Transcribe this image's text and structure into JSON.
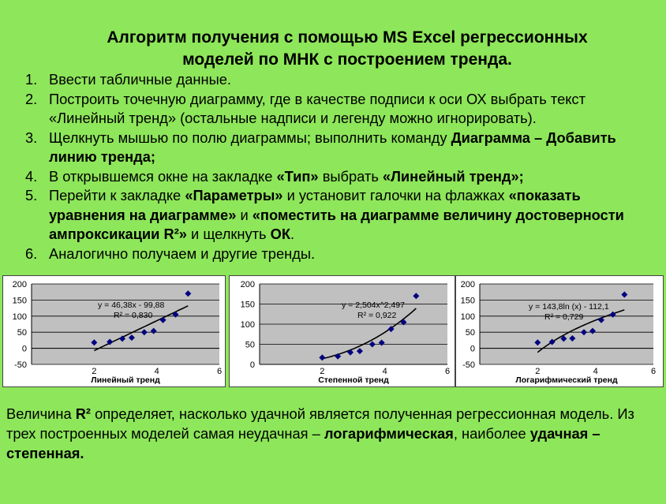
{
  "title_line1": "Алгоритм получения с помощью MS Excel регрессионных",
  "title_line2": "моделей по МНК с построением тренда.",
  "steps": [
    {
      "num": "1.",
      "parts": [
        {
          "t": "Ввести табличные данные.",
          "b": false
        }
      ]
    },
    {
      "num": "2.",
      "parts": [
        {
          "t": "Построить точечную диаграмму, где в качестве подписи к оси ОХ выбрать текст «Линейный тренд» (остальные надписи и легенду можно игнорировать).",
          "b": false
        }
      ]
    },
    {
      "num": "3.",
      "parts": [
        {
          "t": "Щелкнуть  мышью по полю диаграммы; выполнить команду ",
          "b": false
        },
        {
          "t": "Диаграмма – Добавить линию тренда;",
          "b": true
        }
      ]
    },
    {
      "num": "4.",
      "parts": [
        {
          "t": "В открывшемся окне на закладке ",
          "b": false
        },
        {
          "t": "«Тип»",
          "b": true
        },
        {
          "t": " выбрать ",
          "b": false
        },
        {
          "t": "«Линейный тренд»;",
          "b": true
        }
      ]
    },
    {
      "num": "5.",
      "parts": [
        {
          "t": "Перейти к закладке ",
          "b": false
        },
        {
          "t": "«Параметры»",
          "b": true
        },
        {
          "t": " и установит галочки на флажках ",
          "b": false
        },
        {
          "t": "«показать уравнения на диаграмме»",
          "b": true
        },
        {
          "t": " и ",
          "b": false
        },
        {
          "t": "«поместить на диаграмме величину достоверности ампроксикации R²»",
          "b": true
        },
        {
          "t": " и щелкнуть ",
          "b": false
        },
        {
          "t": "ОК",
          "b": true
        },
        {
          "t": ".",
          "b": false
        }
      ]
    },
    {
      "num": "6.",
      "parts": [
        {
          "t": "Аналогично получаем и другие тренды.",
          "b": false
        }
      ]
    }
  ],
  "chart_data": [
    {
      "type": "scatter",
      "xlabel": "Линейный тренд",
      "xlim": [
        0,
        6
      ],
      "ylim": [
        -50,
        200
      ],
      "xticks": [
        "2",
        "4",
        "6"
      ],
      "yticks": [
        "200",
        "150",
        "100",
        "50",
        "0",
        "-50"
      ],
      "equation": "y = 46,38x - 99,88",
      "r2": "R² = 0,830",
      "x": [
        2,
        2.5,
        2.9,
        3.2,
        3.6,
        3.9,
        4.2,
        4.6,
        5
      ],
      "y": [
        18,
        20,
        30,
        33,
        50,
        54,
        88,
        105,
        170
      ],
      "trend": "linear",
      "coef": [
        46.38,
        -99.88
      ]
    },
    {
      "type": "scatter",
      "xlabel": "Степенной тренд",
      "xlim": [
        0,
        6
      ],
      "ylim": [
        0,
        200
      ],
      "xticks": [
        "2",
        "4",
        "6"
      ],
      "yticks": [
        "200",
        "150",
        "100",
        "50",
        "0"
      ],
      "equation": "y = 2,504x^2,497",
      "r2": "R² = 0,922",
      "x": [
        2,
        2.5,
        2.9,
        3.2,
        3.6,
        3.9,
        4.2,
        4.6,
        5
      ],
      "y": [
        17,
        20,
        30,
        33,
        50,
        54,
        88,
        105,
        170
      ],
      "trend": "power",
      "coef": [
        2.504,
        2.497
      ]
    },
    {
      "type": "scatter",
      "xlabel": "Логарифмический тренд",
      "xlim": [
        0,
        6
      ],
      "ylim": [
        -50,
        200
      ],
      "xticks": [
        "2",
        "4",
        "6"
      ],
      "yticks": [
        "200",
        "150",
        "100",
        "50",
        "0",
        "-50"
      ],
      "equation": "y = 143,8ln (x) - 112,1",
      "r2": "R² = 0,729",
      "x": [
        2,
        2.5,
        2.9,
        3.2,
        3.6,
        3.9,
        4.2,
        4.6,
        5
      ],
      "y": [
        18,
        20,
        30,
        31,
        50,
        54,
        88,
        105,
        167
      ],
      "trend": "log",
      "coef": [
        143.8,
        -112.1
      ]
    }
  ],
  "footer": [
    {
      "t": "Величина ",
      "b": false
    },
    {
      "t": "R²",
      "b": true
    },
    {
      "t": " определяет, насколько удачной является полученная регрессионная модель. Из трех построенных моделей самая неудачная – ",
      "b": false
    },
    {
      "t": "логарифмическая",
      "b": true
    },
    {
      "t": ", наиболее ",
      "b": false
    },
    {
      "t": "удачная – степенная.",
      "b": true
    }
  ],
  "colors": {
    "background": "#8ee65a",
    "plot_area": "#c0c0c0",
    "marker": "#000080",
    "trend": "#000000"
  }
}
